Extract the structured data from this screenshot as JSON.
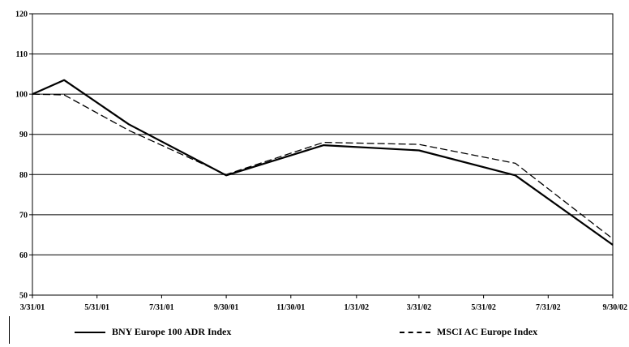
{
  "chart_data": {
    "type": "line",
    "title": "",
    "xlabel": "",
    "ylabel": "",
    "ylim": [
      50,
      120
    ],
    "yticks": [
      "50",
      "60",
      "70",
      "80",
      "90",
      "100",
      "110",
      "120"
    ],
    "xticks": [
      "3/31/01",
      "5/31/01",
      "7/31/01",
      "9/30/01",
      "11/30/01",
      "1/31/02",
      "3/31/02",
      "5/31/02",
      "7/31/02",
      "9/30/02"
    ],
    "grid": "horizontal",
    "legend_position": "bottom",
    "series": [
      {
        "name": "BNY Europe 100 ADR Index",
        "style": "solid",
        "color": "#000000",
        "points": [
          {
            "x": "3/31/01",
            "y": 100
          },
          {
            "x": "4/30/01",
            "y": 103.5
          },
          {
            "x": "6/30/01",
            "y": 92.5
          },
          {
            "x": "9/30/01",
            "y": 79.8
          },
          {
            "x": "12/31/01",
            "y": 87.3
          },
          {
            "x": "3/31/02",
            "y": 86
          },
          {
            "x": "6/30/02",
            "y": 79.8
          },
          {
            "x": "9/30/02",
            "y": 62.5
          }
        ]
      },
      {
        "name": "MSCI AC Europe Index",
        "style": "dashed",
        "color": "#000000",
        "points": [
          {
            "x": "3/31/01",
            "y": 100
          },
          {
            "x": "4/30/01",
            "y": 99.8
          },
          {
            "x": "6/30/01",
            "y": 91
          },
          {
            "x": "9/30/01",
            "y": 80
          },
          {
            "x": "12/31/01",
            "y": 88
          },
          {
            "x": "3/31/02",
            "y": 87.5
          },
          {
            "x": "6/30/02",
            "y": 82.8
          },
          {
            "x": "9/30/02",
            "y": 64
          }
        ]
      }
    ]
  }
}
